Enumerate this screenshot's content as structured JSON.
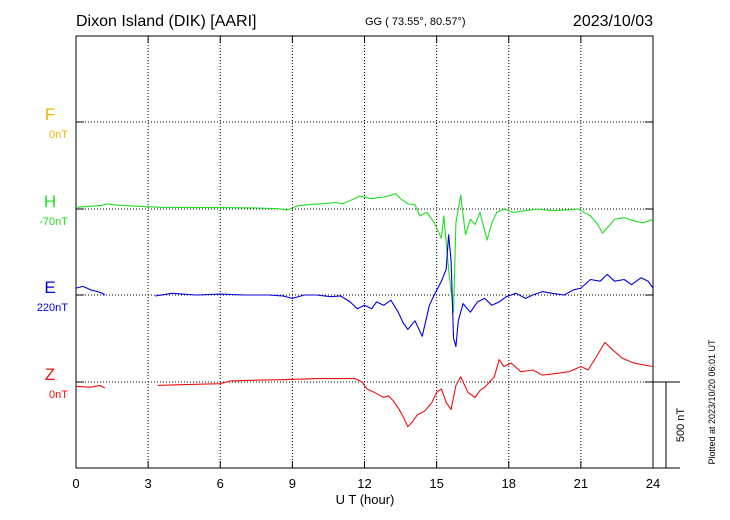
{
  "header": {
    "station": "Dixon Island (DIK)  [AARI]",
    "coords": "GG ( 73.55°,  80.57°)",
    "date": "2023/10/03"
  },
  "footer": {
    "plotted": "Plotted at 2023/10/20 06:01 UT"
  },
  "scale_bar": {
    "label": "500 nT",
    "value_nT": 500
  },
  "colors": {
    "F": "#f2b300",
    "H": "#22dd22",
    "E": "#0000dd",
    "Z": "#ee1111"
  },
  "chart_data": {
    "type": "line",
    "xlabel": "U T (hour)",
    "xlim": [
      0,
      24
    ],
    "x_ticks": [
      0,
      3,
      6,
      9,
      12,
      15,
      18,
      21,
      24
    ],
    "x_tick_labels": [
      "0",
      "3",
      "6",
      "9",
      "12",
      "15",
      "18",
      "21",
      "24"
    ],
    "grid": true,
    "units": "nT",
    "series": [
      {
        "name": "F",
        "baseline_label": "0nT",
        "baseline_nT": 0,
        "points": []
      },
      {
        "name": "H",
        "baseline_label": "-70nT",
        "baseline_nT": -70,
        "points": [
          [
            0.0,
            10
          ],
          [
            0.5,
            15
          ],
          [
            1.0,
            20
          ],
          [
            1.3,
            30
          ],
          [
            1.5,
            25
          ],
          [
            2.0,
            20
          ],
          [
            3.2,
            12
          ],
          [
            3.5,
            10
          ],
          [
            5.0,
            8
          ],
          [
            6.0,
            8
          ],
          [
            7.5,
            6
          ],
          [
            8.4,
            2
          ],
          [
            8.8,
            -5
          ],
          [
            9.2,
            18
          ],
          [
            9.6,
            25
          ],
          [
            10.2,
            30
          ],
          [
            10.8,
            38
          ],
          [
            11.1,
            30
          ],
          [
            11.5,
            55
          ],
          [
            11.8,
            75
          ],
          [
            12.3,
            60
          ],
          [
            12.8,
            70
          ],
          [
            13.1,
            80
          ],
          [
            13.3,
            90
          ],
          [
            13.5,
            60
          ],
          [
            13.8,
            30
          ],
          [
            14.1,
            25
          ],
          [
            14.3,
            -40
          ],
          [
            14.6,
            -20
          ],
          [
            14.9,
            -80
          ],
          [
            15.2,
            -170
          ],
          [
            15.3,
            -40
          ],
          [
            15.5,
            -350
          ],
          [
            15.7,
            -600
          ],
          [
            15.8,
            -80
          ],
          [
            16.0,
            80
          ],
          [
            16.2,
            -150
          ],
          [
            16.4,
            -60
          ],
          [
            16.6,
            -90
          ],
          [
            16.8,
            -20
          ],
          [
            17.1,
            -180
          ],
          [
            17.3,
            -80
          ],
          [
            17.5,
            -20
          ],
          [
            17.8,
            0
          ],
          [
            18.2,
            -20
          ],
          [
            18.7,
            -10
          ],
          [
            19.2,
            0
          ],
          [
            19.8,
            -10
          ],
          [
            20.4,
            -5
          ],
          [
            20.9,
            0
          ],
          [
            21.2,
            -25
          ],
          [
            21.4,
            -40
          ],
          [
            21.7,
            -90
          ],
          [
            21.9,
            -140
          ],
          [
            22.1,
            -110
          ],
          [
            22.4,
            -60
          ],
          [
            22.8,
            -50
          ],
          [
            23.2,
            -70
          ],
          [
            23.6,
            -80
          ],
          [
            24.0,
            -60
          ]
        ]
      },
      {
        "name": "E",
        "baseline_label": "220nT",
        "baseline_nT": 220,
        "points": [
          [
            0.0,
            40
          ],
          [
            0.3,
            50
          ],
          [
            0.6,
            30
          ],
          [
            0.9,
            20
          ],
          [
            1.1,
            10
          ],
          [
            1.2,
            0
          ],
          [
            3.3,
            -5
          ],
          [
            4.0,
            10
          ],
          [
            5.0,
            0
          ],
          [
            6.0,
            5
          ],
          [
            7.0,
            0
          ],
          [
            8.0,
            0
          ],
          [
            8.6,
            -5
          ],
          [
            9.0,
            -20
          ],
          [
            9.5,
            0
          ],
          [
            10.0,
            0
          ],
          [
            10.6,
            -10
          ],
          [
            11.0,
            -5
          ],
          [
            11.4,
            -40
          ],
          [
            11.7,
            -80
          ],
          [
            12.0,
            -60
          ],
          [
            12.3,
            -80
          ],
          [
            12.5,
            -40
          ],
          [
            12.8,
            -60
          ],
          [
            13.1,
            -30
          ],
          [
            13.4,
            -100
          ],
          [
            13.6,
            -160
          ],
          [
            13.8,
            -200
          ],
          [
            14.1,
            -150
          ],
          [
            14.4,
            -240
          ],
          [
            14.7,
            -60
          ],
          [
            14.9,
            0
          ],
          [
            15.2,
            80
          ],
          [
            15.4,
            150
          ],
          [
            15.5,
            350
          ],
          [
            15.6,
            200
          ],
          [
            15.7,
            -250
          ],
          [
            15.8,
            -300
          ],
          [
            15.9,
            -150
          ],
          [
            16.1,
            -50
          ],
          [
            16.4,
            -100
          ],
          [
            16.7,
            -40
          ],
          [
            17.0,
            -20
          ],
          [
            17.3,
            -60
          ],
          [
            17.6,
            -40
          ],
          [
            17.9,
            -10
          ],
          [
            18.3,
            10
          ],
          [
            18.7,
            -20
          ],
          [
            19.0,
            0
          ],
          [
            19.4,
            20
          ],
          [
            19.8,
            10
          ],
          [
            20.3,
            0
          ],
          [
            20.7,
            30
          ],
          [
            21.0,
            40
          ],
          [
            21.4,
            90
          ],
          [
            21.8,
            80
          ],
          [
            22.1,
            120
          ],
          [
            22.4,
            80
          ],
          [
            22.8,
            90
          ],
          [
            23.1,
            60
          ],
          [
            23.5,
            100
          ],
          [
            23.8,
            80
          ],
          [
            24.0,
            40
          ]
        ]
      },
      {
        "name": "Z",
        "baseline_label": "0nT",
        "baseline_nT": 0,
        "points": [
          [
            0.0,
            -25
          ],
          [
            0.6,
            -30
          ],
          [
            1.0,
            -20
          ],
          [
            1.2,
            -35
          ],
          [
            3.4,
            -20
          ],
          [
            4.5,
            -15
          ],
          [
            6.0,
            -10
          ],
          [
            6.4,
            5
          ],
          [
            7.2,
            10
          ],
          [
            8.0,
            12
          ],
          [
            9.0,
            15
          ],
          [
            10.0,
            20
          ],
          [
            11.0,
            20
          ],
          [
            11.6,
            20
          ],
          [
            11.9,
            0
          ],
          [
            12.1,
            -40
          ],
          [
            12.4,
            -60
          ],
          [
            12.8,
            -90
          ],
          [
            13.0,
            -80
          ],
          [
            13.2,
            -110
          ],
          [
            13.4,
            -150
          ],
          [
            13.6,
            -200
          ],
          [
            13.8,
            -260
          ],
          [
            14.0,
            -230
          ],
          [
            14.2,
            -190
          ],
          [
            14.5,
            -170
          ],
          [
            14.8,
            -120
          ],
          [
            15.0,
            -60
          ],
          [
            15.2,
            -40
          ],
          [
            15.4,
            -120
          ],
          [
            15.6,
            -160
          ],
          [
            15.8,
            -20
          ],
          [
            16.0,
            30
          ],
          [
            16.3,
            -60
          ],
          [
            16.6,
            -90
          ],
          [
            16.8,
            -50
          ],
          [
            17.0,
            -30
          ],
          [
            17.4,
            30
          ],
          [
            17.6,
            130
          ],
          [
            17.8,
            90
          ],
          [
            18.1,
            110
          ],
          [
            18.5,
            60
          ],
          [
            19.0,
            70
          ],
          [
            19.4,
            40
          ],
          [
            20.0,
            50
          ],
          [
            20.5,
            60
          ],
          [
            21.0,
            90
          ],
          [
            21.3,
            70
          ],
          [
            21.7,
            160
          ],
          [
            22.0,
            230
          ],
          [
            22.3,
            190
          ],
          [
            22.7,
            140
          ],
          [
            23.2,
            110
          ],
          [
            23.6,
            100
          ],
          [
            24.0,
            90
          ]
        ]
      }
    ]
  }
}
